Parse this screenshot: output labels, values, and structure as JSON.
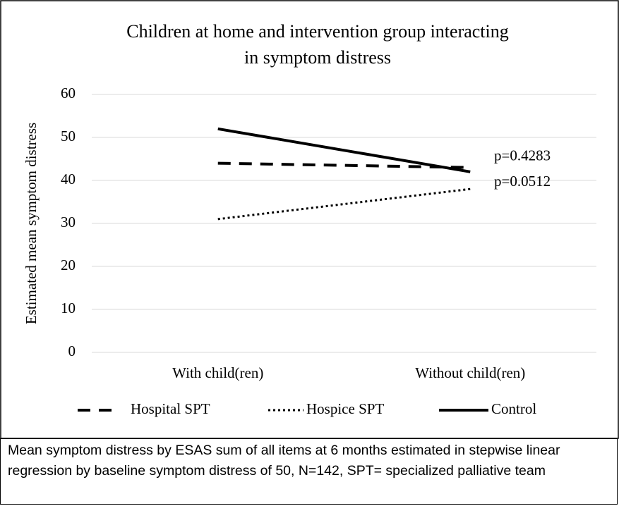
{
  "chart_data": {
    "type": "line",
    "title": [
      "Children at home and intervention group interacting",
      "in symptom distress"
    ],
    "y_label": "Estimated mean symptom distress",
    "categories": [
      "With child(ren)",
      "Without child(ren)"
    ],
    "series": [
      {
        "name": "Hospital SPT",
        "color": "#000000",
        "dash": "dashed",
        "values": [
          44,
          43
        ]
      },
      {
        "name": "Hospice SPT",
        "color": "#000000",
        "dash": "dotted",
        "values": [
          31,
          38
        ]
      },
      {
        "name": "Control",
        "color": "#000000",
        "dash": "solid",
        "values": [
          52,
          42
        ]
      }
    ],
    "annotations": [
      {
        "text": "p=0.4283",
        "y": 43
      },
      {
        "text": "p=0.0512",
        "y": 38
      }
    ],
    "ylim": [
      0,
      60
    ],
    "yticks": [
      0,
      10,
      20,
      30,
      40,
      50,
      60
    ],
    "grid": true,
    "legend": "bottom"
  },
  "caption": "Mean symptom distress by ESAS sum of all items at 6 months estimated in stepwise linear regression by baseline symptom distress of 50, N=142, SPT= specialized palliative team"
}
